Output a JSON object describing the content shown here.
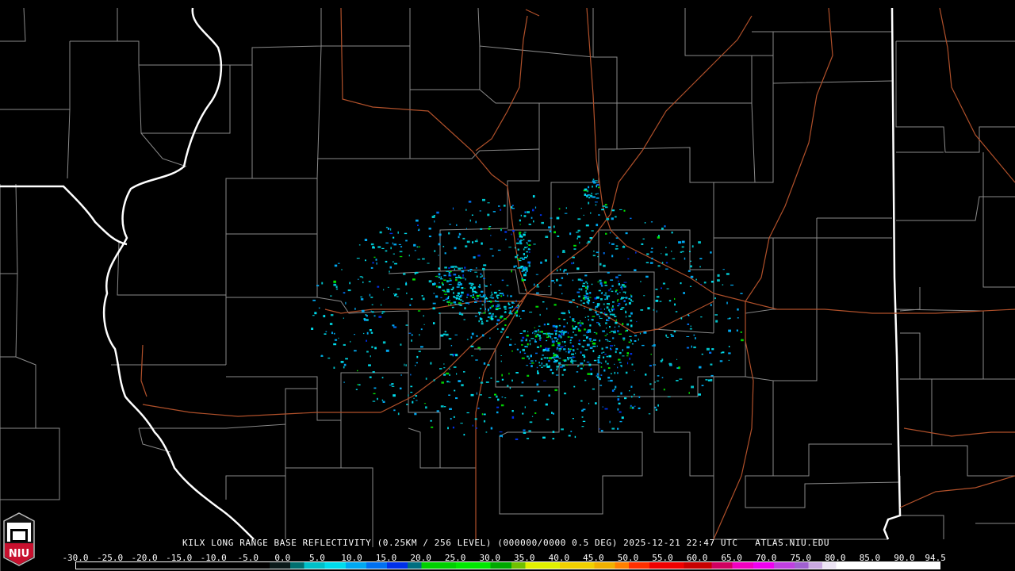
{
  "product": {
    "title": "KILX LONG RANGE BASE REFLECTIVITY (0.25KM / 256 LEVEL) (000000/0000 0.5 DEG) 2025-12-21 22:47 UTC   ATLAS.NIU.EDU"
  },
  "logo": {
    "text": "NIU",
    "color": "#c8102e"
  },
  "colorbar": {
    "range": [
      -30,
      95
    ],
    "labels": [
      "-30.0",
      "-25.0",
      "-20.0",
      "-15.0",
      "-10.0",
      "-5.0",
      "0.0",
      "5.0",
      "10.0",
      "15.0",
      "20.0",
      "25.0",
      "30.0",
      "35.0",
      "40.0",
      "45.0",
      "50.0",
      "55.0",
      "60.0",
      "65.0",
      "70.0",
      "75.0",
      "80.0",
      "85.0",
      "90.0",
      "94.5"
    ],
    "stops": [
      {
        "dbz": -30,
        "color": "#000000"
      },
      {
        "dbz": -2,
        "color": "#0a1a1a"
      },
      {
        "dbz": 1,
        "color": "#006f6f"
      },
      {
        "dbz": 3,
        "color": "#00c0c8"
      },
      {
        "dbz": 6,
        "color": "#00dcec"
      },
      {
        "dbz": 9,
        "color": "#00a8f0"
      },
      {
        "dbz": 12,
        "color": "#0070f0"
      },
      {
        "dbz": 15,
        "color": "#0030e8"
      },
      {
        "dbz": 18,
        "color": "#006e80"
      },
      {
        "dbz": 20,
        "color": "#00d000"
      },
      {
        "dbz": 25,
        "color": "#00e800"
      },
      {
        "dbz": 30,
        "color": "#00a800"
      },
      {
        "dbz": 33,
        "color": "#70c000"
      },
      {
        "dbz": 35,
        "color": "#e0f000"
      },
      {
        "dbz": 40,
        "color": "#f0d000"
      },
      {
        "dbz": 45,
        "color": "#f0b000"
      },
      {
        "dbz": 48,
        "color": "#ff8000"
      },
      {
        "dbz": 50,
        "color": "#ff3000"
      },
      {
        "dbz": 53,
        "color": "#f00000"
      },
      {
        "dbz": 58,
        "color": "#c80000"
      },
      {
        "dbz": 62,
        "color": "#d00060"
      },
      {
        "dbz": 65,
        "color": "#f000c0"
      },
      {
        "dbz": 68,
        "color": "#f000f0"
      },
      {
        "dbz": 71,
        "color": "#c040e0"
      },
      {
        "dbz": 74,
        "color": "#a060d0"
      },
      {
        "dbz": 76,
        "color": "#c8a8e0"
      },
      {
        "dbz": 78,
        "color": "#ece4f4"
      },
      {
        "dbz": 80,
        "color": "#ffffff"
      },
      {
        "dbz": 95,
        "color": "#ffffff"
      }
    ]
  },
  "colors": {
    "county": "#8a8a8a",
    "state": "#ffffff",
    "highway": "#b0502a",
    "background": "#000000"
  }
}
